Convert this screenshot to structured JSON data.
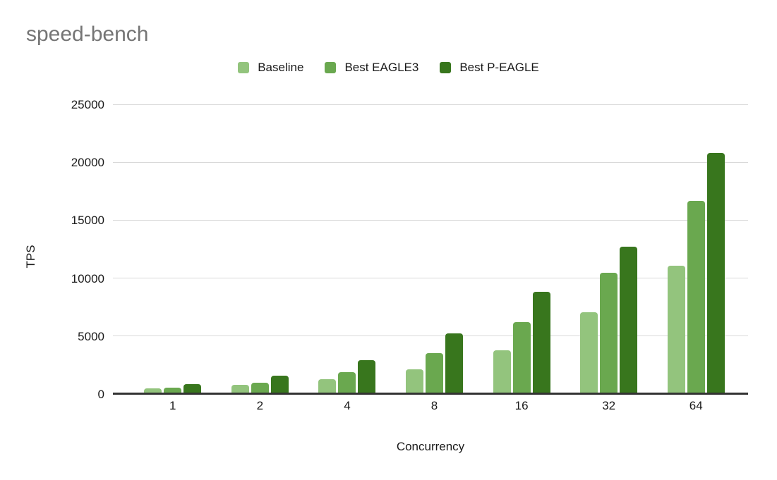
{
  "header": {
    "title": "speed-bench",
    "title_color": "#757575"
  },
  "legend": {
    "items": [
      {
        "label": "Baseline",
        "color": "#93c47d"
      },
      {
        "label": "Best EAGLE3",
        "color": "#6aa84f"
      },
      {
        "label": "Best P-EAGLE",
        "color": "#38761d"
      }
    ]
  },
  "chart_data": {
    "type": "bar",
    "title": "speed-bench",
    "categories": [
      "1",
      "2",
      "4",
      "8",
      "16",
      "32",
      "64"
    ],
    "series": [
      {
        "name": "Baseline",
        "color": "#93c47d",
        "values": [
          500,
          800,
          1250,
          2100,
          3750,
          7050,
          11100
        ]
      },
      {
        "name": "Best EAGLE3",
        "color": "#6aa84f",
        "values": [
          550,
          950,
          1900,
          3550,
          6200,
          10450,
          16650
        ]
      },
      {
        "name": "Best P-EAGLE",
        "color": "#38761d",
        "values": [
          850,
          1600,
          2900,
          5250,
          8800,
          12700,
          20800
        ]
      }
    ],
    "xlabel": "Concurrency",
    "ylabel": "TPS",
    "ylim": [
      0,
      25000
    ],
    "yticks": [
      0,
      5000,
      10000,
      15000,
      20000,
      25000
    ],
    "grid": true,
    "legend_position": "top",
    "gridline_color": "#d9d9d9",
    "axis_line_color": "#333333"
  }
}
